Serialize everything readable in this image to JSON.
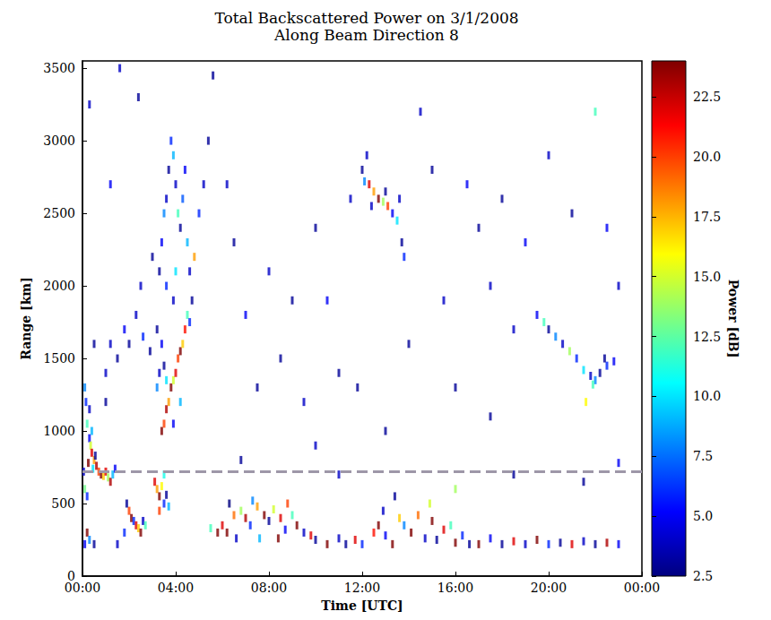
{
  "chart_data": {
    "type": "scatter",
    "title": "Total Backscattered Power on 3/1/2008",
    "subtitle": "Along Beam Direction 8",
    "x_label": "Time [UTC]",
    "y_label": "Range [km]",
    "marker": "rect",
    "xlim": [
      0,
      24
    ],
    "xticks": [
      {
        "value": 0,
        "label": "00:00"
      },
      {
        "value": 4,
        "label": "04:00"
      },
      {
        "value": 8,
        "label": "08:00"
      },
      {
        "value": 12,
        "label": "12:00"
      },
      {
        "value": 16,
        "label": "16:00"
      },
      {
        "value": 20,
        "label": "20:00"
      },
      {
        "value": 24,
        "label": "00:00"
      }
    ],
    "ylim": [
      0,
      3550
    ],
    "yticks": [
      0,
      500,
      1000,
      1500,
      2000,
      2500,
      3000,
      3500
    ],
    "colorbar": {
      "label": "Power [dB]",
      "range": [
        2.5,
        24
      ],
      "ticks": [
        2.5,
        {
          "value": 5,
          "label": "5.0"
        },
        7.5,
        {
          "value": 10,
          "label": "10.0"
        },
        12.5,
        {
          "value": 15,
          "label": "15.0"
        },
        17.5,
        {
          "value": 20,
          "label": "20.0"
        },
        22.5
      ],
      "colors": [
        "#00007f",
        "#0000ff",
        "#007fff",
        "#00ffff",
        "#7fff7f",
        "#ffff00",
        "#ff7f00",
        "#ff0000",
        "#7f0000"
      ]
    },
    "hline": {
      "value": 720,
      "color": "#9e97a8",
      "line_style": "dashed"
    },
    "points": [
      [
        0.1,
        1300,
        8
      ],
      [
        0.15,
        1200,
        6
      ],
      [
        0.2,
        1050,
        12
      ],
      [
        0.3,
        950,
        5
      ],
      [
        0.35,
        900,
        15
      ],
      [
        0.4,
        850,
        22
      ],
      [
        0.5,
        800,
        18
      ],
      [
        0.6,
        760,
        23
      ],
      [
        0.7,
        720,
        20
      ],
      [
        0.8,
        700,
        24
      ],
      [
        0.9,
        690,
        17
      ],
      [
        1.0,
        720,
        22
      ],
      [
        1.1,
        680,
        14
      ],
      [
        1.2,
        650,
        23
      ],
      [
        1.3,
        700,
        9
      ],
      [
        1.4,
        740,
        5
      ],
      [
        0.25,
        780,
        24
      ],
      [
        0.45,
        740,
        10
      ],
      [
        0.55,
        830,
        3
      ],
      [
        0.05,
        720,
        4
      ],
      [
        0.1,
        600,
        13
      ],
      [
        0.2,
        550,
        6
      ],
      [
        0.3,
        1150,
        4
      ],
      [
        0.4,
        1000,
        9
      ],
      [
        0.1,
        220,
        5
      ],
      [
        0.2,
        300,
        24
      ],
      [
        0.3,
        250,
        8
      ],
      [
        0.5,
        220,
        3
      ],
      [
        1.5,
        220,
        4
      ],
      [
        1.8,
        300,
        6
      ],
      [
        2.0,
        450,
        20
      ],
      [
        2.1,
        400,
        24
      ],
      [
        2.2,
        380,
        6
      ],
      [
        2.3,
        350,
        22
      ],
      [
        2.4,
        330,
        17
      ],
      [
        2.5,
        300,
        24
      ],
      [
        2.6,
        380,
        4
      ],
      [
        2.7,
        350,
        12
      ],
      [
        1.9,
        500,
        3
      ],
      [
        3.1,
        650,
        22
      ],
      [
        3.2,
        600,
        18
      ],
      [
        3.3,
        550,
        24
      ],
      [
        3.4,
        620,
        16
      ],
      [
        3.5,
        500,
        6
      ],
      [
        3.6,
        560,
        3
      ],
      [
        3.7,
        480,
        9
      ],
      [
        3.3,
        450,
        20
      ],
      [
        3.5,
        700,
        11
      ],
      [
        6.0,
        350,
        22
      ],
      [
        6.2,
        300,
        24
      ],
      [
        6.5,
        420,
        19
      ],
      [
        6.8,
        450,
        14
      ],
      [
        7.0,
        400,
        23
      ],
      [
        7.2,
        350,
        6
      ],
      [
        7.5,
        480,
        18
      ],
      [
        7.8,
        420,
        24
      ],
      [
        8.0,
        380,
        3
      ],
      [
        8.2,
        460,
        15
      ],
      [
        8.5,
        400,
        22
      ],
      [
        8.7,
        320,
        5
      ],
      [
        9.0,
        420,
        12
      ],
      [
        9.2,
        350,
        24
      ],
      [
        9.5,
        300,
        4
      ],
      [
        9.8,
        280,
        22
      ],
      [
        10.0,
        250,
        3
      ],
      [
        6.3,
        500,
        2.5
      ],
      [
        7.3,
        520,
        8
      ],
      [
        8.8,
        500,
        20
      ],
      [
        5.8,
        300,
        24
      ],
      [
        5.5,
        330,
        12
      ],
      [
        6.6,
        260,
        4
      ],
      [
        7.6,
        260,
        9
      ],
      [
        8.4,
        260,
        24
      ],
      [
        10.5,
        220,
        24
      ],
      [
        11.0,
        260,
        4
      ],
      [
        11.3,
        220,
        3
      ],
      [
        11.7,
        250,
        22
      ],
      [
        12.0,
        220,
        6
      ],
      [
        12.5,
        300,
        21
      ],
      [
        12.7,
        350,
        24
      ],
      [
        13.0,
        280,
        5
      ],
      [
        13.3,
        220,
        24
      ],
      [
        13.6,
        400,
        17
      ],
      [
        13.8,
        350,
        8
      ],
      [
        14.1,
        300,
        24
      ],
      [
        14.4,
        420,
        19
      ],
      [
        14.7,
        260,
        4
      ],
      [
        15.0,
        380,
        24
      ],
      [
        15.2,
        250,
        3
      ],
      [
        15.5,
        320,
        22
      ],
      [
        15.8,
        350,
        12
      ],
      [
        16.0,
        230,
        24
      ],
      [
        16.3,
        280,
        6
      ],
      [
        16.6,
        220,
        3
      ],
      [
        12.9,
        450,
        4
      ],
      [
        14.9,
        500,
        15
      ],
      [
        13.4,
        550,
        3
      ],
      [
        17.0,
        220,
        24
      ],
      [
        17.5,
        260,
        5
      ],
      [
        18.0,
        220,
        3
      ],
      [
        18.5,
        240,
        22
      ],
      [
        19.0,
        220,
        4
      ],
      [
        19.5,
        250,
        24
      ],
      [
        20.0,
        220,
        6
      ],
      [
        20.5,
        230,
        3
      ],
      [
        21.0,
        220,
        22
      ],
      [
        21.5,
        240,
        4
      ],
      [
        22.0,
        220,
        3
      ],
      [
        22.5,
        230,
        23
      ],
      [
        23.0,
        220,
        5
      ],
      [
        3.4,
        1000,
        24
      ],
      [
        3.5,
        1050,
        20
      ],
      [
        3.6,
        1150,
        23
      ],
      [
        3.7,
        1200,
        18
      ],
      [
        3.8,
        1300,
        24
      ],
      [
        3.9,
        1350,
        15
      ],
      [
        4.0,
        1400,
        22
      ],
      [
        4.1,
        1500,
        20
      ],
      [
        4.2,
        1550,
        24
      ],
      [
        4.3,
        1600,
        17
      ],
      [
        4.4,
        1700,
        21
      ],
      [
        3.2,
        1300,
        8
      ],
      [
        3.3,
        1400,
        4
      ],
      [
        3.5,
        1450,
        3
      ],
      [
        3.6,
        1350,
        10
      ],
      [
        3.4,
        1600,
        5
      ],
      [
        3.2,
        1700,
        3
      ],
      [
        4.5,
        1800,
        12
      ],
      [
        4.6,
        1750,
        6
      ],
      [
        3.9,
        1050,
        5
      ],
      [
        4.2,
        1200,
        9
      ],
      [
        3.3,
        2100,
        3
      ],
      [
        3.4,
        2300,
        5
      ],
      [
        3.5,
        2500,
        8
      ],
      [
        3.6,
        2600,
        4
      ],
      [
        3.7,
        2800,
        3
      ],
      [
        3.8,
        3000,
        6
      ],
      [
        3.9,
        2900,
        9
      ],
      [
        4.0,
        2700,
        4
      ],
      [
        4.1,
        2500,
        12
      ],
      [
        4.2,
        2400,
        3
      ],
      [
        4.3,
        2600,
        7
      ],
      [
        4.4,
        2800,
        5
      ],
      [
        4.5,
        2300,
        9
      ],
      [
        4.6,
        2100,
        4
      ],
      [
        4.8,
        2200,
        18
      ],
      [
        5.0,
        2500,
        6
      ],
      [
        5.2,
        2700,
        4
      ],
      [
        5.4,
        3000,
        3
      ],
      [
        3.6,
        2000,
        6
      ],
      [
        4.0,
        2100,
        10
      ],
      [
        4.7,
        1900,
        3
      ],
      [
        3.9,
        1900,
        4
      ],
      [
        1.2,
        1600,
        4
      ],
      [
        1.5,
        1500,
        3
      ],
      [
        1.8,
        1700,
        5
      ],
      [
        2.0,
        1600,
        3
      ],
      [
        2.3,
        1800,
        4
      ],
      [
        2.6,
        1650,
        6
      ],
      [
        2.9,
        1550,
        3
      ],
      [
        1.0,
        1200,
        3
      ],
      [
        2.5,
        2000,
        4
      ],
      [
        12.0,
        2800,
        3
      ],
      [
        12.1,
        2720,
        8
      ],
      [
        12.3,
        2700,
        22
      ],
      [
        12.5,
        2650,
        18
      ],
      [
        12.7,
        2600,
        24
      ],
      [
        12.9,
        2580,
        14
      ],
      [
        13.1,
        2550,
        20
      ],
      [
        13.3,
        2500,
        5
      ],
      [
        13.5,
        2450,
        10
      ],
      [
        13.7,
        2300,
        3
      ],
      [
        13.8,
        2200,
        6
      ],
      [
        12.4,
        2550,
        4
      ],
      [
        13.0,
        2650,
        3
      ],
      [
        12.2,
        2900,
        4
      ],
      [
        13.6,
        2600,
        4
      ],
      [
        19.5,
        1800,
        5
      ],
      [
        19.8,
        1750,
        12
      ],
      [
        20.0,
        1700,
        3
      ],
      [
        20.3,
        1650,
        8
      ],
      [
        20.6,
        1600,
        4
      ],
      [
        20.9,
        1550,
        14
      ],
      [
        21.2,
        1500,
        6
      ],
      [
        21.5,
        1420,
        10
      ],
      [
        21.8,
        1380,
        4
      ],
      [
        22.0,
        1350,
        8
      ],
      [
        22.2,
        1400,
        3
      ],
      [
        22.5,
        1450,
        6
      ],
      [
        22.8,
        1480,
        5
      ],
      [
        21.6,
        1200,
        16
      ],
      [
        21.9,
        1320,
        12
      ],
      [
        22.4,
        1500,
        3
      ],
      [
        0.3,
        3250,
        4
      ],
      [
        1.2,
        2700,
        5
      ],
      [
        1.6,
        3500,
        4
      ],
      [
        2.4,
        3300,
        3
      ],
      [
        3.0,
        2200,
        3
      ],
      [
        5.6,
        3450,
        3
      ],
      [
        6.2,
        2700,
        4
      ],
      [
        6.5,
        2300,
        3
      ],
      [
        7.0,
        1800,
        5
      ],
      [
        7.5,
        1300,
        3
      ],
      [
        8.0,
        2100,
        4
      ],
      [
        8.5,
        1500,
        3
      ],
      [
        9.0,
        1900,
        3
      ],
      [
        9.5,
        1200,
        4
      ],
      [
        10.0,
        2400,
        3
      ],
      [
        10.5,
        1900,
        5
      ],
      [
        11.0,
        1400,
        3
      ],
      [
        11.5,
        2600,
        4
      ],
      [
        11.8,
        1300,
        3
      ],
      [
        14.5,
        3200,
        4
      ],
      [
        14.0,
        1600,
        3
      ],
      [
        15.0,
        2800,
        3
      ],
      [
        15.5,
        1900,
        4
      ],
      [
        16.0,
        1300,
        3
      ],
      [
        16.5,
        2700,
        5
      ],
      [
        17.0,
        2400,
        3
      ],
      [
        17.5,
        2000,
        4
      ],
      [
        18.0,
        2600,
        3
      ],
      [
        18.5,
        1700,
        4
      ],
      [
        19.0,
        2300,
        5
      ],
      [
        20.0,
        2900,
        4
      ],
      [
        21.0,
        2500,
        3
      ],
      [
        22.0,
        3200,
        12
      ],
      [
        22.5,
        2400,
        5
      ],
      [
        23.0,
        2000,
        4
      ],
      [
        13.0,
        1000,
        3
      ],
      [
        17.5,
        1100,
        3
      ],
      [
        10.0,
        900,
        4
      ],
      [
        6.8,
        800,
        3
      ],
      [
        16.0,
        600,
        14
      ],
      [
        18.5,
        700,
        3
      ],
      [
        23.0,
        780,
        5
      ],
      [
        11.0,
        700,
        4
      ],
      [
        21.5,
        650,
        3
      ],
      [
        0.5,
        1600,
        3
      ],
      [
        1.0,
        1400,
        4
      ]
    ]
  }
}
